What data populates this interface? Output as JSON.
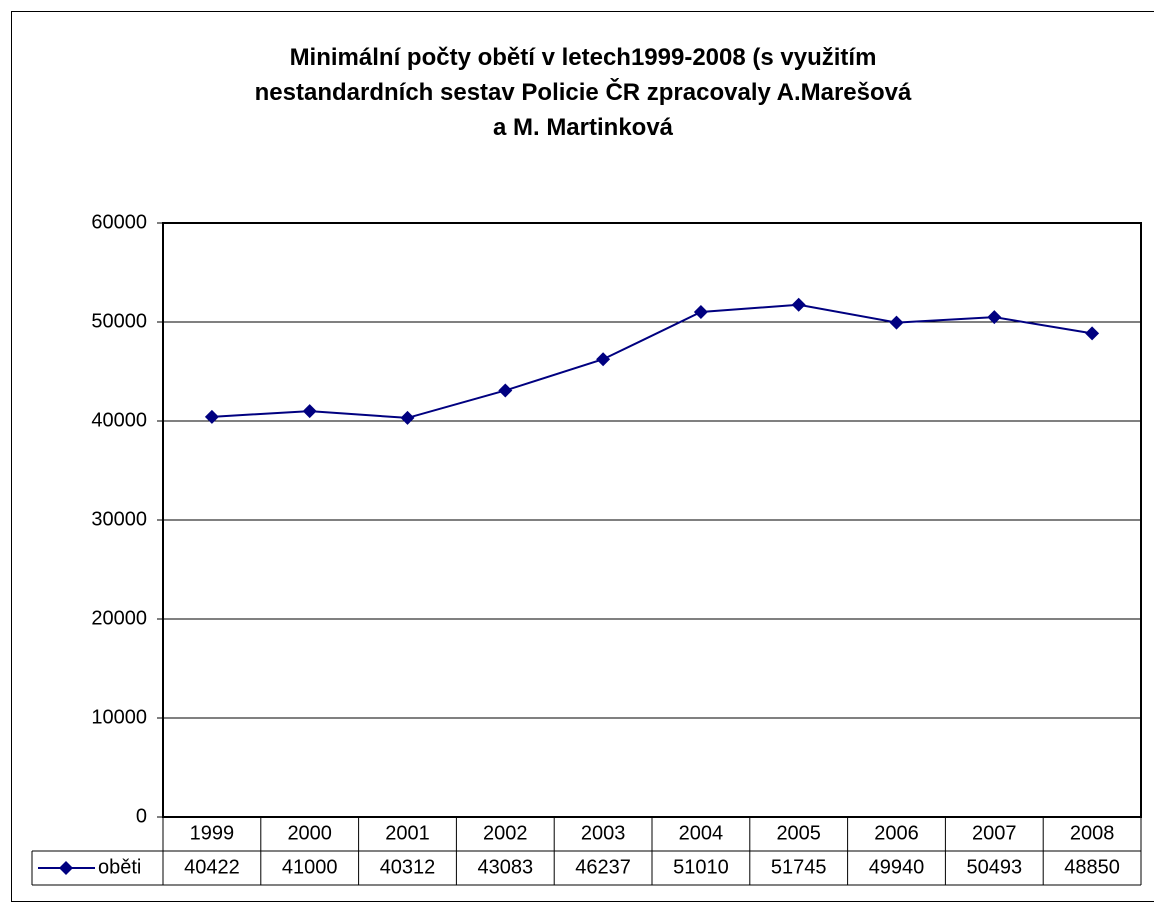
{
  "chart_data": {
    "type": "line",
    "title": "Minimální počty obětí v letech1999-2008 (s využitím\nnestandardních sestav Policie ČR zpracovaly A.Marešová\na M. Martinková",
    "categories": [
      "1999",
      "2000",
      "2001",
      "2002",
      "2003",
      "2004",
      "2005",
      "2006",
      "2007",
      "2008"
    ],
    "series": [
      {
        "name": "oběti",
        "color": "#000080",
        "values": [
          40422,
          41000,
          40312,
          43083,
          46237,
          51010,
          51745,
          49940,
          50493,
          48850
        ]
      }
    ],
    "ylim": [
      0,
      60000
    ],
    "yticks": [
      0,
      10000,
      20000,
      30000,
      40000,
      50000,
      60000
    ],
    "grid": true,
    "data_table": true
  }
}
